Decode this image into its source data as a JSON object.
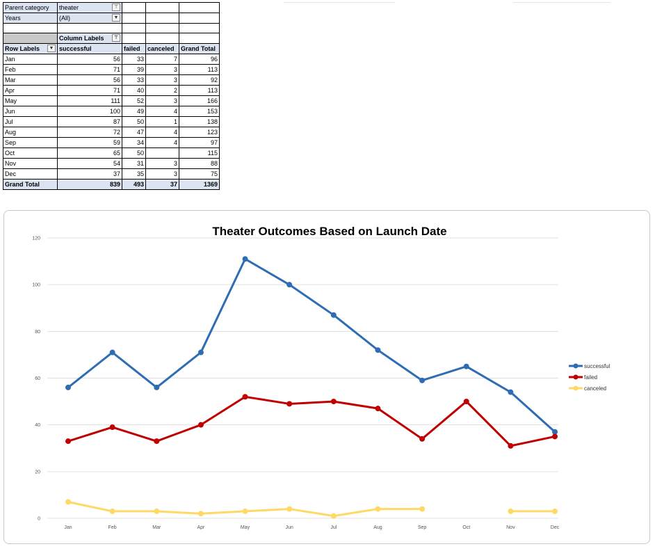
{
  "pivot": {
    "filters": [
      {
        "label": "Parent category",
        "value": "theater"
      },
      {
        "label": "Years",
        "value": "(All)"
      }
    ],
    "column_labels": "Column Labels",
    "row_labels": "Row Labels",
    "headers": [
      "successful",
      "failed",
      "canceled",
      "Grand Total"
    ],
    "rows": [
      {
        "label": "Jan",
        "successful": "56",
        "failed": "33",
        "canceled": "7",
        "total": "96"
      },
      {
        "label": "Feb",
        "successful": "71",
        "failed": "39",
        "canceled": "3",
        "total": "113"
      },
      {
        "label": "Mar",
        "successful": "56",
        "failed": "33",
        "canceled": "3",
        "total": "92"
      },
      {
        "label": "Apr",
        "successful": "71",
        "failed": "40",
        "canceled": "2",
        "total": "113"
      },
      {
        "label": "May",
        "successful": "111",
        "failed": "52",
        "canceled": "3",
        "total": "166"
      },
      {
        "label": "Jun",
        "successful": "100",
        "failed": "49",
        "canceled": "4",
        "total": "153"
      },
      {
        "label": "Jul",
        "successful": "87",
        "failed": "50",
        "canceled": "1",
        "total": "138"
      },
      {
        "label": "Aug",
        "successful": "72",
        "failed": "47",
        "canceled": "4",
        "total": "123"
      },
      {
        "label": "Sep",
        "successful": "59",
        "failed": "34",
        "canceled": "4",
        "total": "97"
      },
      {
        "label": "Oct",
        "successful": "65",
        "failed": "50",
        "canceled": "",
        "total": "115"
      },
      {
        "label": "Nov",
        "successful": "54",
        "failed": "31",
        "canceled": "3",
        "total": "88"
      },
      {
        "label": "Dec",
        "successful": "37",
        "failed": "35",
        "canceled": "3",
        "total": "75"
      }
    ],
    "grand_total": {
      "label": "Grand Total",
      "successful": "839",
      "failed": "493",
      "canceled": "37",
      "total": "1369"
    }
  },
  "chart_data": {
    "type": "line",
    "title": "Theater Outcomes Based on Launch Date",
    "categories": [
      "Jan",
      "Feb",
      "Mar",
      "Apr",
      "May",
      "Jun",
      "Jul",
      "Aug",
      "Sep",
      "Oct",
      "Nov",
      "Dec"
    ],
    "series": [
      {
        "name": "successful",
        "color": "#2e6db4",
        "values": [
          56,
          71,
          56,
          71,
          111,
          100,
          87,
          72,
          59,
          65,
          54,
          37
        ]
      },
      {
        "name": "failed",
        "color": "#c00000",
        "values": [
          33,
          39,
          33,
          40,
          52,
          49,
          50,
          47,
          34,
          50,
          31,
          35
        ]
      },
      {
        "name": "canceled",
        "color": "#ffd966",
        "values": [
          7,
          3,
          3,
          2,
          3,
          4,
          1,
          4,
          4,
          null,
          3,
          3
        ]
      }
    ],
    "ylim": [
      0,
      120
    ],
    "yticks": [
      0,
      20,
      40,
      60,
      80,
      100,
      120
    ],
    "grid": true,
    "legend": "right"
  }
}
